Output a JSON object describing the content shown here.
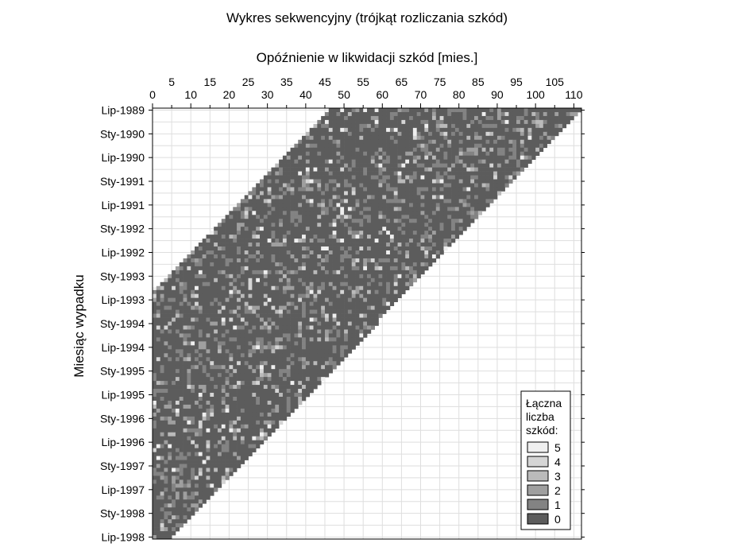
{
  "chart_data": {
    "type": "heatmap",
    "title": "Wykres sekwencyjny (trójkąt rozliczania szkód)",
    "xlabel": "Opóźnienie w likwidacji szkód [mies.]",
    "ylabel": "Miesiąc wypadku",
    "x_axis_position": "top",
    "x_range": [
      0,
      112
    ],
    "x_ticks_row1": [
      5,
      15,
      25,
      35,
      45,
      55,
      65,
      75,
      85,
      95,
      105
    ],
    "x_ticks_row2": [
      0,
      10,
      20,
      30,
      40,
      50,
      60,
      70,
      80,
      90,
      100,
      110
    ],
    "y_categories_shown": [
      "Lip-1989",
      "Sty-1990",
      "Lip-1990",
      "Sty-1991",
      "Lip-1991",
      "Sty-1992",
      "Lip-1992",
      "Sty-1993",
      "Lip-1993",
      "Sty-1994",
      "Lip-1994",
      "Sty-1995",
      "Lip-1995",
      "Sty-1996",
      "Lip-1996",
      "Sty-1997",
      "Lip-1997",
      "Sty-1998",
      "Lip-1998"
    ],
    "y_months_per_label": 6,
    "first_accident_month": "Lip-1989",
    "last_accident_month": "Lip-1998",
    "observed_region": "delay from 0 up to the last observed calendar month; triangle shape with earliest accident months at the top having the longest observed delays (about 47 to 112 months)",
    "value_description": "number of claims per cell, mostly 0 with scattered cells of 1 to 5",
    "grid": true,
    "legend": {
      "title_lines": [
        "Łączna",
        "liczba",
        "szkód:"
      ],
      "placement": "bottom-right",
      "items": [
        {
          "label": "5",
          "color": "#efefef"
        },
        {
          "label": "4",
          "color": "#d5d5d5"
        },
        {
          "label": "3",
          "color": "#bababa"
        },
        {
          "label": "2",
          "color": "#9f9f9f"
        },
        {
          "label": "1",
          "color": "#838383"
        },
        {
          "label": "0",
          "color": "#5c5c5c"
        }
      ]
    }
  }
}
